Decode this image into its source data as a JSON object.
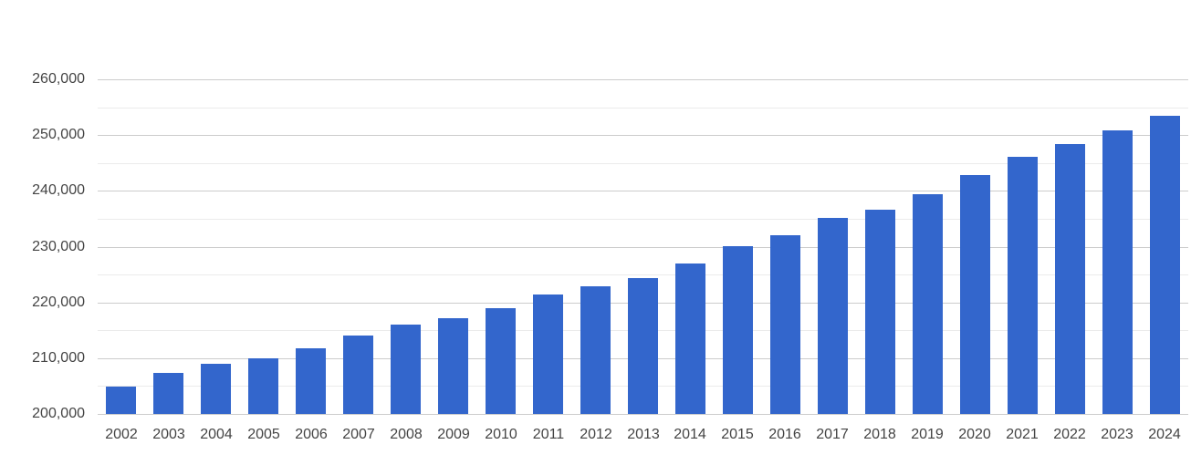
{
  "chart_data": {
    "type": "bar",
    "title": "",
    "xlabel": "",
    "ylabel": "",
    "legend": "none",
    "grid": true,
    "categories": [
      "2002",
      "2003",
      "2004",
      "2005",
      "2006",
      "2007",
      "2008",
      "2009",
      "2010",
      "2011",
      "2012",
      "2013",
      "2014",
      "2015",
      "2016",
      "2017",
      "2018",
      "2019",
      "2020",
      "2021",
      "2022",
      "2023",
      "2024"
    ],
    "values": [
      204900,
      207300,
      209000,
      209900,
      211800,
      214100,
      216000,
      217100,
      219000,
      221400,
      222900,
      224300,
      226900,
      230100,
      232100,
      235200,
      236600,
      239400,
      242800,
      246100,
      248400,
      250800,
      253500
    ],
    "ylim": [
      200000,
      260000
    ],
    "y_major_step": 10000,
    "y_minor_step": 5000,
    "y_tick_labels": [
      "200,000",
      "210,000",
      "220,000",
      "230,000",
      "240,000",
      "250,000",
      "260,000"
    ],
    "colors": {
      "bar": "#3366cc",
      "major_gridline": "#cccccc",
      "minor_gridline": "#ebebeb",
      "axis_text": "#444444",
      "background": "#ffffff"
    }
  }
}
